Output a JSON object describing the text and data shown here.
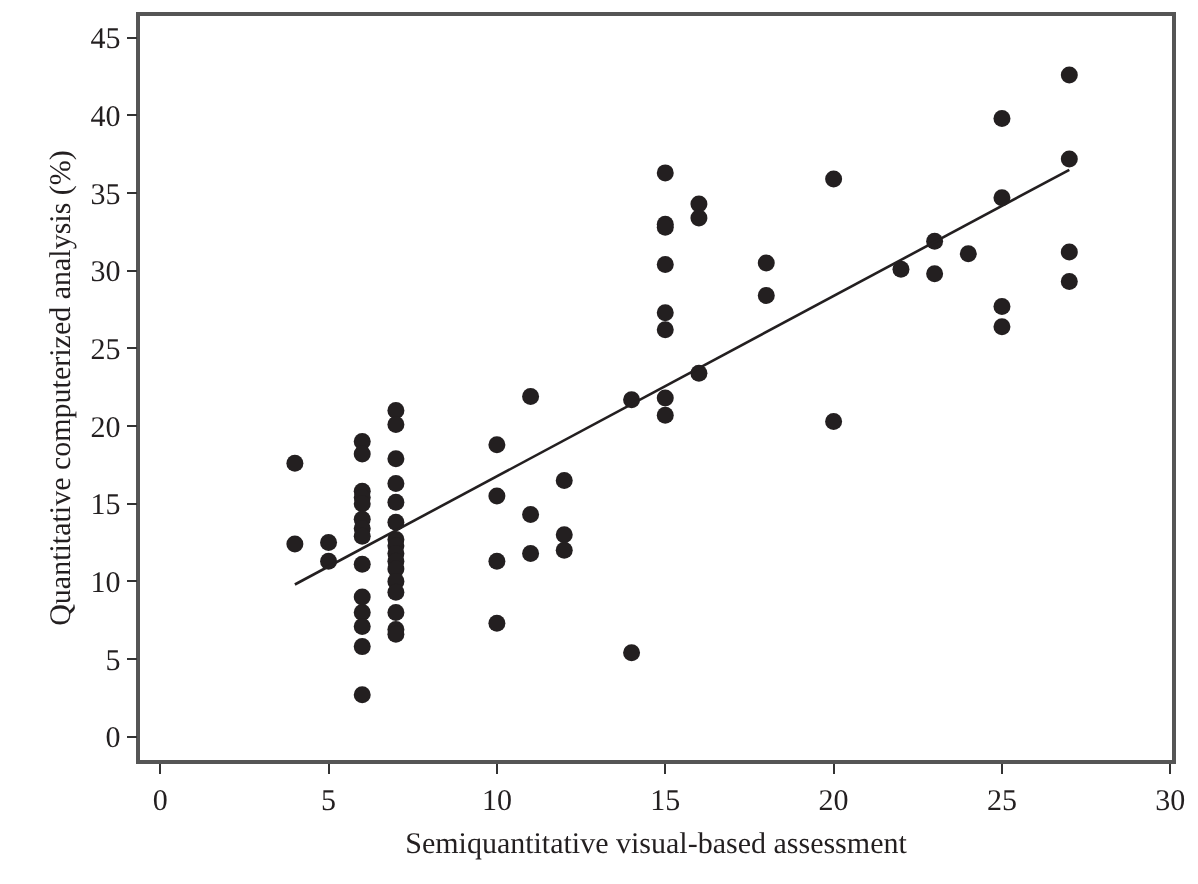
{
  "chart_data": {
    "type": "scatter",
    "xlabel": "Semiquantitative visual-based assessment",
    "ylabel": "Quantitative computerized analysis (%)",
    "xlim": [
      -0.6,
      30.05
    ],
    "ylim": [
      -1.5,
      46.4
    ],
    "xticks": [
      0,
      5,
      10,
      15,
      20,
      25,
      30
    ],
    "yticks": [
      0,
      5,
      10,
      15,
      20,
      25,
      30,
      35,
      40,
      45
    ],
    "marker": "circle",
    "series": [
      {
        "color": "#231f20",
        "x": [
          4,
          4,
          5,
          5,
          6,
          6,
          6,
          6,
          6,
          6,
          6,
          6,
          6,
          6,
          6,
          6,
          6,
          6,
          7,
          7,
          7,
          7,
          7,
          7,
          7,
          7,
          7,
          7,
          7,
          7,
          7,
          7,
          7,
          7,
          10,
          10,
          10,
          10,
          11,
          11,
          11,
          12,
          12,
          12,
          14,
          14,
          15,
          15,
          15,
          15,
          15,
          15,
          15,
          15,
          16,
          16,
          16,
          18,
          18,
          20,
          20,
          22,
          23,
          23,
          24,
          25,
          25,
          25,
          25,
          27,
          27,
          27,
          27
        ],
        "values": [
          17.6,
          12.4,
          12.5,
          11.3,
          19.0,
          18.2,
          15.8,
          15.4,
          15.0,
          14.0,
          13.4,
          12.9,
          11.1,
          9.0,
          8.0,
          7.1,
          5.8,
          2.7,
          21.0,
          20.1,
          17.9,
          16.3,
          15.1,
          13.8,
          12.7,
          12.3,
          11.8,
          11.3,
          10.8,
          10.0,
          9.3,
          8.0,
          6.9,
          6.6,
          18.8,
          15.5,
          11.3,
          7.3,
          21.9,
          14.3,
          11.8,
          16.5,
          13.0,
          12.0,
          21.7,
          5.4,
          36.3,
          33.0,
          32.8,
          30.4,
          27.3,
          26.2,
          21.8,
          20.7,
          34.3,
          33.4,
          23.4,
          30.5,
          28.4,
          35.9,
          20.3,
          30.1,
          31.9,
          29.8,
          31.1,
          39.8,
          34.7,
          27.7,
          26.4,
          42.6,
          37.2,
          31.2,
          29.3
        ]
      },
      {
        "type": "line",
        "color": "#231f20",
        "x": [
          4,
          27
        ],
        "values": [
          9.8,
          36.5
        ],
        "marker": "none",
        "line_style": "solid"
      }
    ]
  }
}
